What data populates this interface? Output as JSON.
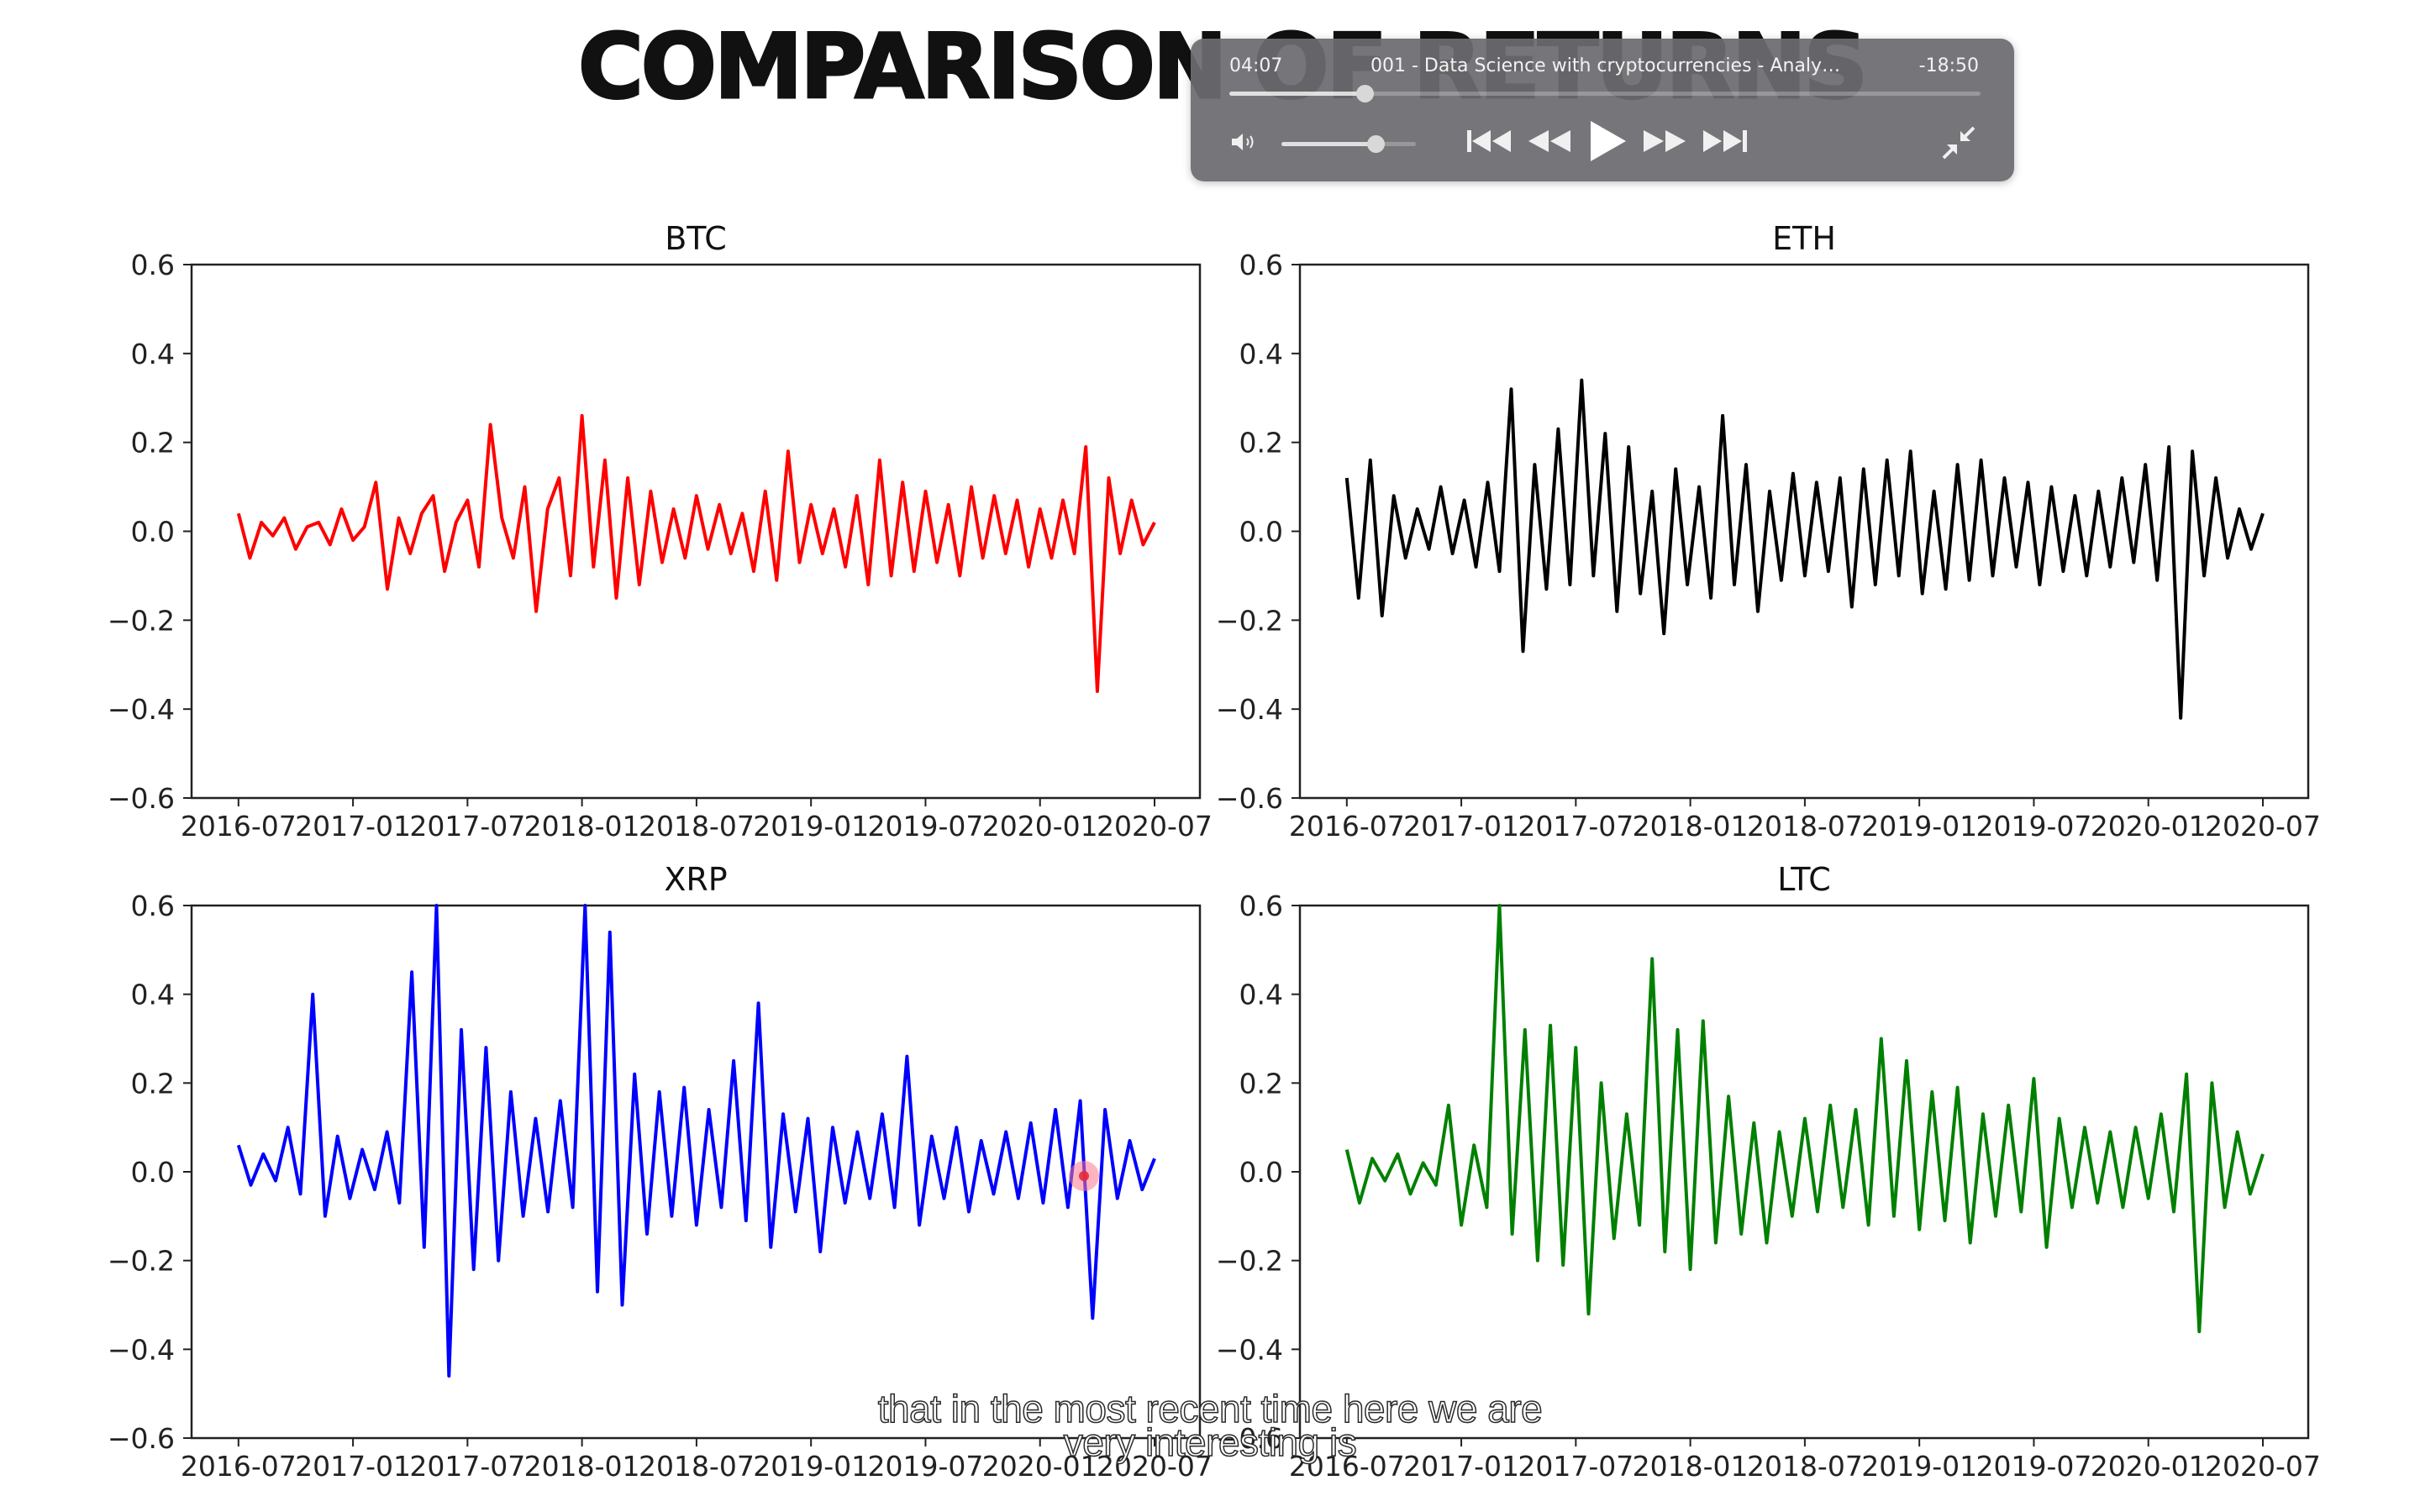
{
  "slide": {
    "title": "COMPARISON OF RETURNS"
  },
  "player": {
    "elapsed": "04:07",
    "video_title": "001 - Data Science with cryptocurrencies - Analysi...",
    "remaining": "-18:50",
    "progress_fraction": 0.18,
    "volume_fraction": 0.7,
    "icons": [
      "volume-icon",
      "skip-back-icon",
      "rewind-icon",
      "play-icon",
      "fast-forward-icon",
      "skip-forward-icon",
      "exit-fullscreen-icon"
    ]
  },
  "captions": {
    "line1": "that in the most recent time here we are",
    "line2": "very interesting is"
  },
  "chart_data": [
    {
      "type": "line",
      "title": "BTC",
      "color": "#ff0000",
      "x_tick_labels": [
        "2016-07",
        "2017-01",
        "2017-07",
        "2018-01",
        "2018-07",
        "2019-01",
        "2019-07",
        "2020-01",
        "2020-07"
      ],
      "y_tick_labels": [
        "0.6",
        "0.4",
        "0.2",
        "0.0",
        "−0.2",
        "−0.4",
        "−0.6"
      ],
      "ylim": [
        -0.6,
        0.6
      ],
      "series": [
        {
          "values": [
            0.04,
            -0.06,
            0.02,
            -0.01,
            0.03,
            -0.04,
            0.01,
            0.02,
            -0.03,
            0.05,
            -0.02,
            0.01,
            0.11,
            -0.13,
            0.03,
            -0.05,
            0.04,
            0.08,
            -0.09,
            0.02,
            0.07,
            -0.08,
            0.24,
            0.03,
            -0.06,
            0.1,
            -0.18,
            0.05,
            0.12,
            -0.1,
            0.26,
            -0.08,
            0.16,
            -0.15,
            0.12,
            -0.12,
            0.09,
            -0.07,
            0.05,
            -0.06,
            0.08,
            -0.04,
            0.06,
            -0.05,
            0.04,
            -0.09,
            0.09,
            -0.11,
            0.18,
            -0.07,
            0.06,
            -0.05,
            0.05,
            -0.08,
            0.08,
            -0.12,
            0.16,
            -0.1,
            0.11,
            -0.09,
            0.09,
            -0.07,
            0.06,
            -0.1,
            0.1,
            -0.06,
            0.08,
            -0.05,
            0.07,
            -0.08,
            0.05,
            -0.06,
            0.07,
            -0.05,
            0.19,
            -0.36,
            0.12,
            -0.05,
            0.07,
            -0.03,
            0.02
          ]
        }
      ]
    },
    {
      "type": "line",
      "title": "ETH",
      "color": "#000000",
      "x_tick_labels": [
        "2016-07",
        "2017-01",
        "2017-07",
        "2018-01",
        "2018-07",
        "2019-01",
        "2019-07",
        "2020-01",
        "2020-07"
      ],
      "y_tick_labels": [
        "0.6",
        "0.4",
        "0.2",
        "0.0",
        "−0.2",
        "−0.4",
        "−0.6"
      ],
      "ylim": [
        -0.6,
        0.6
      ],
      "series": [
        {
          "values": [
            0.12,
            -0.15,
            0.16,
            -0.19,
            0.08,
            -0.06,
            0.05,
            -0.04,
            0.1,
            -0.05,
            0.07,
            -0.08,
            0.11,
            -0.09,
            0.32,
            -0.27,
            0.15,
            -0.13,
            0.23,
            -0.12,
            0.34,
            -0.1,
            0.22,
            -0.18,
            0.19,
            -0.14,
            0.09,
            -0.23,
            0.14,
            -0.12,
            0.1,
            -0.15,
            0.26,
            -0.12,
            0.15,
            -0.18,
            0.09,
            -0.11,
            0.13,
            -0.1,
            0.11,
            -0.09,
            0.12,
            -0.17,
            0.14,
            -0.12,
            0.16,
            -0.1,
            0.18,
            -0.14,
            0.09,
            -0.13,
            0.15,
            -0.11,
            0.16,
            -0.1,
            0.12,
            -0.08,
            0.11,
            -0.12,
            0.1,
            -0.09,
            0.08,
            -0.1,
            0.09,
            -0.08,
            0.12,
            -0.07,
            0.15,
            -0.11,
            0.19,
            -0.42,
            0.18,
            -0.1,
            0.12,
            -0.06,
            0.05,
            -0.04,
            0.04
          ]
        }
      ]
    },
    {
      "type": "line",
      "title": "XRP",
      "color": "#0000ff",
      "x_tick_labels": [
        "2016-07",
        "2017-01",
        "2017-07",
        "2018-01",
        "2018-07",
        "2019-01",
        "2019-07",
        "2020-01",
        "2020-07"
      ],
      "y_tick_labels": [
        "0.6",
        "0.4",
        "0.2",
        "0.0",
        "−0.2",
        "−0.4",
        "−0.6"
      ],
      "ylim": [
        -0.6,
        0.6
      ],
      "series": [
        {
          "values": [
            0.06,
            -0.03,
            0.04,
            -0.02,
            0.1,
            -0.05,
            0.4,
            -0.1,
            0.08,
            -0.06,
            0.05,
            -0.04,
            0.09,
            -0.07,
            0.45,
            -0.17,
            0.6,
            -0.46,
            0.32,
            -0.22,
            0.28,
            -0.2,
            0.18,
            -0.1,
            0.12,
            -0.09,
            0.16,
            -0.08,
            0.6,
            -0.27,
            0.54,
            -0.3,
            0.22,
            -0.14,
            0.18,
            -0.1,
            0.19,
            -0.12,
            0.14,
            -0.08,
            0.25,
            -0.11,
            0.38,
            -0.17,
            0.13,
            -0.09,
            0.12,
            -0.18,
            0.1,
            -0.07,
            0.09,
            -0.06,
            0.13,
            -0.08,
            0.26,
            -0.12,
            0.08,
            -0.06,
            0.1,
            -0.09,
            0.07,
            -0.05,
            0.09,
            -0.06,
            0.11,
            -0.07,
            0.14,
            -0.08,
            0.16,
            -0.33,
            0.14,
            -0.06,
            0.07,
            -0.04,
            0.03
          ]
        }
      ]
    },
    {
      "type": "line",
      "title": "LTC",
      "color": "#008000",
      "x_tick_labels": [
        "2016-07",
        "2017-01",
        "2017-07",
        "2018-01",
        "2018-07",
        "2019-01",
        "2019-07",
        "2020-01",
        "2020-07"
      ],
      "y_tick_labels": [
        "0.6",
        "0.4",
        "0.2",
        "0.0",
        "−0.2",
        "−0.4",
        "−0.6"
      ],
      "ylim": [
        -0.6,
        0.6
      ],
      "series": [
        {
          "values": [
            0.05,
            -0.07,
            0.03,
            -0.02,
            0.04,
            -0.05,
            0.02,
            -0.03,
            0.15,
            -0.12,
            0.06,
            -0.08,
            0.6,
            -0.14,
            0.32,
            -0.2,
            0.33,
            -0.21,
            0.28,
            -0.32,
            0.2,
            -0.15,
            0.13,
            -0.12,
            0.48,
            -0.18,
            0.32,
            -0.22,
            0.34,
            -0.16,
            0.17,
            -0.14,
            0.11,
            -0.16,
            0.09,
            -0.1,
            0.12,
            -0.09,
            0.15,
            -0.08,
            0.14,
            -0.12,
            0.3,
            -0.1,
            0.25,
            -0.13,
            0.18,
            -0.11,
            0.19,
            -0.16,
            0.13,
            -0.1,
            0.15,
            -0.09,
            0.21,
            -0.17,
            0.12,
            -0.08,
            0.1,
            -0.07,
            0.09,
            -0.08,
            0.1,
            -0.06,
            0.13,
            -0.09,
            0.22,
            -0.36,
            0.2,
            -0.08,
            0.09,
            -0.05,
            0.04
          ]
        }
      ]
    }
  ]
}
